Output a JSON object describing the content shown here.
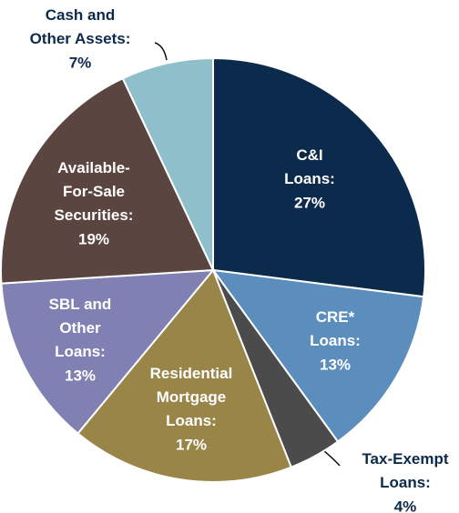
{
  "chart_data": {
    "type": "pie",
    "categories": [
      "C&I\nLoans:",
      "CRE*\nLoans:",
      "Tax-Exempt\nLoans:",
      "Residential\nMortgage\nLoans:",
      "SBL and\nOther\nLoans:",
      "Available-\nFor-Sale\nSecurities:",
      "Cash and\nOther Assets:"
    ],
    "values": [
      27,
      13,
      4,
      17,
      13,
      19,
      7
    ],
    "value_labels": [
      "27%",
      "13%",
      "4%",
      "17%",
      "13%",
      "19%",
      "7%"
    ],
    "colors": [
      "#0c2a4b",
      "#5b8dbd",
      "#4b4b4b",
      "#9a8548",
      "#8080b2",
      "#5b4540",
      "#8fbfcb"
    ]
  }
}
